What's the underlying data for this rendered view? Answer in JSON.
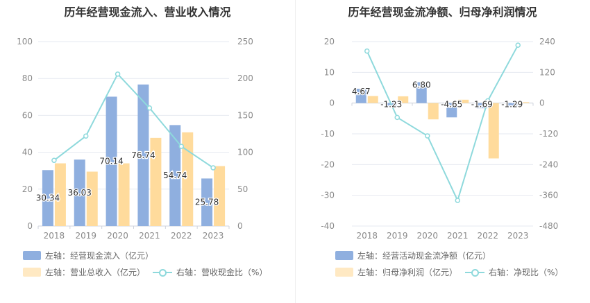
{
  "charts": [
    {
      "title": "历年经营现金流入、营业收入情况",
      "legend": {
        "bar1": "左轴：经营现金流入（亿元）",
        "bar2": "左轴：营业总收入（亿元）",
        "line": "右轴：营收现金比（%）"
      }
    },
    {
      "title": "历年经营现金流净额、归母净利润情况",
      "legend": {
        "bar1": "左轴：经营活动现金流净额（亿元）",
        "bar2": "左轴：归母净利润（亿元）",
        "line": "右轴：净现比（%）"
      }
    }
  ],
  "chart_data": [
    {
      "type": "bar",
      "categories": [
        "2018",
        "2019",
        "2020",
        "2021",
        "2022",
        "2023"
      ],
      "series": [
        {
          "name": "经营现金流入",
          "axis": "left",
          "kind": "bar",
          "color": "#8fafdf",
          "values": [
            30.34,
            36.03,
            70.14,
            76.74,
            54.74,
            25.78
          ],
          "labels": [
            "30.34",
            "36.03",
            "70.14",
            "76.74",
            "54.74",
            "25.78"
          ]
        },
        {
          "name": "营业总收入",
          "axis": "left",
          "kind": "bar",
          "color": "#ffdb9c",
          "values": [
            34.0,
            29.5,
            34.0,
            47.8,
            50.8,
            32.5
          ]
        },
        {
          "name": "营收现金比",
          "axis": "right",
          "kind": "line",
          "color": "#8ed9dc",
          "values": [
            89,
            122,
            206,
            160,
            108,
            79
          ]
        }
      ],
      "left_axis": {
        "min": 0,
        "max": 100,
        "ticks": [
          "100",
          "80",
          "60",
          "40",
          "20",
          "0"
        ]
      },
      "right_axis": {
        "min": 0,
        "max": 250,
        "ticks": [
          "250",
          "200",
          "150",
          "100",
          "50",
          "0"
        ]
      },
      "grid": true
    },
    {
      "type": "bar",
      "categories": [
        "2018",
        "2019",
        "2020",
        "2021",
        "2022",
        "2023"
      ],
      "series": [
        {
          "name": "经营活动现金流净额",
          "axis": "left",
          "kind": "bar",
          "color": "#8fafdf",
          "values": [
            4.67,
            -1.23,
            6.8,
            -4.65,
            -1.69,
            -1.29
          ],
          "labels": [
            "4.67",
            "-1.23",
            "6.80",
            "-4.65",
            "-1.69",
            "-1.29"
          ]
        },
        {
          "name": "归母净利润",
          "axis": "left",
          "kind": "bar",
          "color": "#ffdb9c",
          "values": [
            2.3,
            2.2,
            -5.3,
            1.1,
            -18.0,
            0.3
          ]
        },
        {
          "name": "净现比",
          "axis": "right",
          "kind": "line",
          "color": "#8ed9dc",
          "values": [
            203,
            -56,
            -128,
            -380,
            9,
            226
          ]
        }
      ],
      "left_axis": {
        "min": -40,
        "max": 20,
        "ticks": [
          "20",
          "10",
          "0",
          "-10",
          "-20",
          "-30",
          "-40"
        ]
      },
      "right_axis": {
        "min": -480,
        "max": 240,
        "ticks": [
          "240",
          "120",
          "0",
          "-120",
          "-240",
          "-360",
          "-480"
        ]
      },
      "grid": true
    }
  ]
}
